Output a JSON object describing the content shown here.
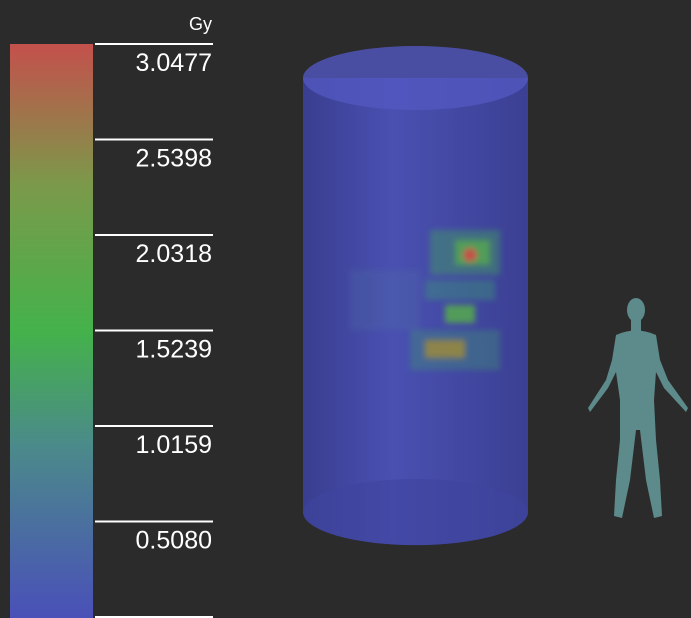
{
  "colorbar": {
    "unit": "Gy",
    "lim": [
      0,
      3.0477
    ],
    "ticks": [
      {
        "value": 3.0477,
        "label": "3.0477"
      },
      {
        "value": 2.5398,
        "label": "2.5398"
      },
      {
        "value": 2.0318,
        "label": "2.0318"
      },
      {
        "value": 1.5239,
        "label": "1.5239"
      },
      {
        "value": 1.0159,
        "label": "1.0159"
      },
      {
        "value": 0.508,
        "label": "0.5080"
      }
    ]
  }
}
